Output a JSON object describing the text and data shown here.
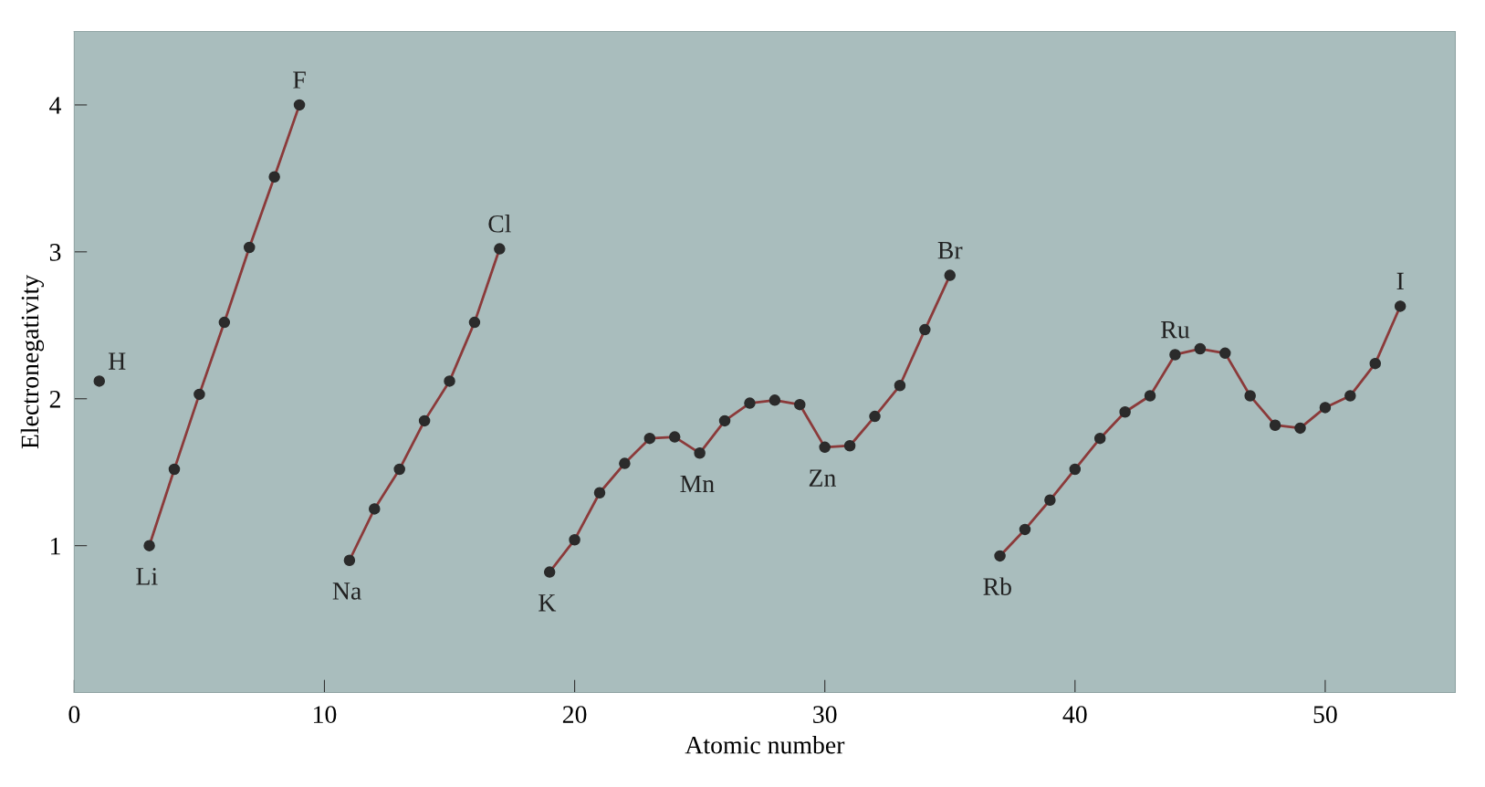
{
  "chart_data": {
    "type": "line",
    "xlabel": "Atomic number",
    "ylabel": "Electronegativity",
    "xlim": [
      0,
      55.2
    ],
    "ylim": [
      0,
      4.5
    ],
    "xticks": [
      0,
      10,
      20,
      30,
      40,
      50
    ],
    "yticks": [
      1,
      2,
      3,
      4
    ],
    "marker": "circle",
    "line_style": "solid",
    "series": [
      {
        "type": "scatter",
        "color": "#2b2b2b",
        "x": [
          1
        ],
        "values": [
          2.12
        ]
      },
      {
        "color": "#8b3a3a",
        "x": [
          3,
          4,
          5,
          6,
          7,
          8,
          9
        ],
        "values": [
          1.0,
          1.52,
          2.03,
          2.52,
          3.03,
          3.51,
          4.0
        ]
      },
      {
        "color": "#8b3a3a",
        "x": [
          11,
          12,
          13,
          14,
          15,
          16,
          17
        ],
        "values": [
          0.9,
          1.25,
          1.52,
          1.85,
          2.12,
          2.52,
          3.02
        ]
      },
      {
        "color": "#8b3a3a",
        "x": [
          19,
          20,
          21,
          22,
          23,
          24,
          25,
          26,
          27,
          28,
          29,
          30,
          31,
          32,
          33,
          34,
          35
        ],
        "values": [
          0.82,
          1.04,
          1.36,
          1.56,
          1.73,
          1.74,
          1.63,
          1.85,
          1.97,
          1.99,
          1.96,
          1.67,
          1.68,
          1.88,
          2.09,
          2.47,
          2.84
        ]
      },
      {
        "color": "#8b3a3a",
        "x": [
          37,
          38,
          39,
          40,
          41,
          42,
          43,
          44,
          45,
          46,
          47,
          48,
          49,
          50,
          51,
          52,
          53
        ],
        "values": [
          0.93,
          1.11,
          1.31,
          1.52,
          1.73,
          1.91,
          2.02,
          2.3,
          2.34,
          2.31,
          2.02,
          1.82,
          1.8,
          1.94,
          2.02,
          2.24,
          2.63
        ]
      }
    ],
    "annotations": [
      {
        "text": "H",
        "x": 1,
        "y": 2.12
      },
      {
        "text": "Li",
        "x": 3,
        "y": 1.0
      },
      {
        "text": "F",
        "x": 9,
        "y": 4.0
      },
      {
        "text": "Na",
        "x": 11,
        "y": 0.9
      },
      {
        "text": "Cl",
        "x": 17,
        "y": 3.02
      },
      {
        "text": "K",
        "x": 19,
        "y": 0.82
      },
      {
        "text": "Mn",
        "x": 25,
        "y": 1.63
      },
      {
        "text": "Zn",
        "x": 30,
        "y": 1.67
      },
      {
        "text": "Br",
        "x": 35,
        "y": 2.84
      },
      {
        "text": "Rb",
        "x": 37,
        "y": 0.93
      },
      {
        "text": "Ru",
        "x": 44,
        "y": 2.3
      },
      {
        "text": "I",
        "x": 53,
        "y": 2.63
      }
    ]
  }
}
